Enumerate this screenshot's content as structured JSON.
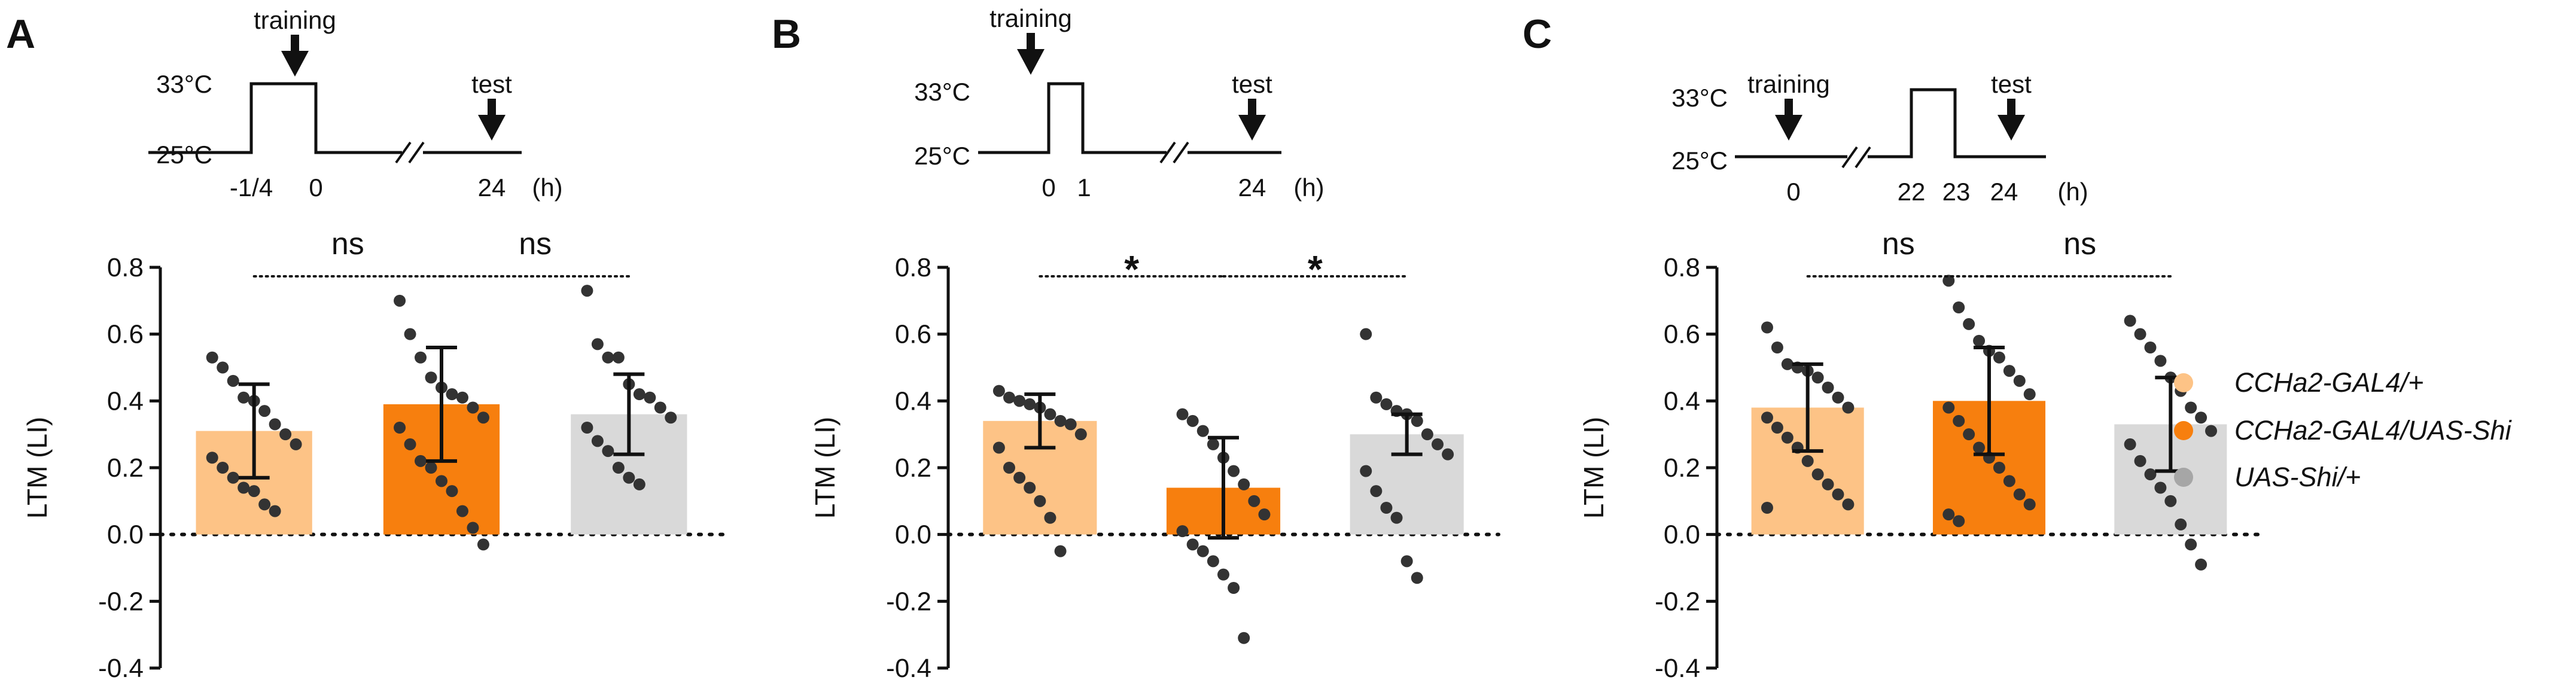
{
  "figure": {
    "legend": [
      {
        "label": "CCHa2-GAL4/+",
        "color": "#FDC386"
      },
      {
        "label": "CCHa2-GAL4/UAS-Shi",
        "color": "#F77F0E"
      },
      {
        "label": "UAS-Shi/+",
        "color": "#A6A6A6"
      }
    ],
    "colors": {
      "ink": "#111111",
      "dots": "#333333",
      "light_gray_bar": "#D9D9D9"
    }
  },
  "chart_data": [
    {
      "panel": "A",
      "type": "bar",
      "title": "",
      "ylabel": "LTM (LI)",
      "ylim": [
        -0.4,
        0.8
      ],
      "yticks": [
        "0.8",
        "0.6",
        "0.4",
        "0.2",
        "0.0",
        "-0.2",
        "-0.4"
      ],
      "categories": [
        "CCHa2-GAL4/+",
        "CCHa2-GAL4/UAS-Shi",
        "UAS-Shi/+"
      ],
      "values": [
        0.31,
        0.39,
        0.36
      ],
      "sd": [
        0.14,
        0.17,
        0.12
      ],
      "points": [
        [
          0.53,
          0.5,
          0.46,
          0.41,
          0.4,
          0.37,
          0.33,
          0.3,
          0.27,
          0.23,
          0.2,
          0.17,
          0.14,
          0.13,
          0.09,
          0.07
        ],
        [
          0.7,
          0.6,
          0.53,
          0.47,
          0.44,
          0.42,
          0.41,
          0.38,
          0.35,
          0.32,
          0.27,
          0.22,
          0.2,
          0.16,
          0.13,
          0.07,
          0.02,
          -0.03
        ],
        [
          0.73,
          0.57,
          0.53,
          0.53,
          0.45,
          0.42,
          0.41,
          0.38,
          0.35,
          0.32,
          0.28,
          0.25,
          0.2,
          0.17,
          0.15
        ]
      ],
      "significance": [
        "ns",
        "ns"
      ],
      "protocol": {
        "training_label": "training",
        "test_label": "test",
        "temp_high": "33°C",
        "temp_low": "25°C",
        "ticks": [
          "-1/4",
          "0",
          "24"
        ],
        "unit": "(h)"
      }
    },
    {
      "panel": "B",
      "type": "bar",
      "title": "",
      "ylabel": "LTM (LI)",
      "ylim": [
        -0.4,
        0.8
      ],
      "yticks": [
        "0.8",
        "0.6",
        "0.4",
        "0.2",
        "0.0",
        "-0.2",
        "-0.4"
      ],
      "categories": [
        "CCHa2-GAL4/+",
        "CCHa2-GAL4/UAS-Shi",
        "UAS-Shi/+"
      ],
      "values": [
        0.34,
        0.14,
        0.3
      ],
      "sd": [
        0.08,
        0.15,
        0.06
      ],
      "points": [
        [
          0.43,
          0.41,
          0.4,
          0.39,
          0.38,
          0.36,
          0.34,
          0.33,
          0.3,
          0.26,
          0.2,
          0.17,
          0.14,
          0.1,
          0.05,
          -0.05
        ],
        [
          0.36,
          0.34,
          0.31,
          0.27,
          0.23,
          0.19,
          0.15,
          0.1,
          0.06,
          0.01,
          -0.03,
          -0.05,
          -0.08,
          -0.12,
          -0.16,
          -0.31
        ],
        [
          0.6,
          0.41,
          0.39,
          0.37,
          0.36,
          0.34,
          0.3,
          0.27,
          0.24,
          0.19,
          0.13,
          0.08,
          0.05,
          -0.08,
          -0.13
        ]
      ],
      "significance": [
        "*",
        "*"
      ],
      "protocol": {
        "training_label": "training",
        "test_label": "test",
        "temp_high": "33°C",
        "temp_low": "25°C",
        "ticks": [
          "0",
          "1",
          "24"
        ],
        "unit": "(h)"
      }
    },
    {
      "panel": "C",
      "type": "bar",
      "title": "",
      "ylabel": "LTM (LI)",
      "ylim": [
        -0.4,
        0.8
      ],
      "yticks": [
        "0.8",
        "0.6",
        "0.4",
        "0.2",
        "0.0",
        "-0.2",
        "-0.4"
      ],
      "categories": [
        "CCHa2-GAL4/+",
        "CCHa2-GAL4/UAS-Shi",
        "UAS-Shi/+"
      ],
      "values": [
        0.38,
        0.4,
        0.33
      ],
      "sd": [
        0.13,
        0.16,
        0.14
      ],
      "points": [
        [
          0.62,
          0.56,
          0.51,
          0.5,
          0.49,
          0.47,
          0.44,
          0.41,
          0.38,
          0.35,
          0.32,
          0.29,
          0.26,
          0.22,
          0.18,
          0.15,
          0.12,
          0.09,
          0.08
        ],
        [
          0.76,
          0.68,
          0.63,
          0.58,
          0.55,
          0.53,
          0.49,
          0.46,
          0.42,
          0.38,
          0.34,
          0.3,
          0.26,
          0.23,
          0.2,
          0.16,
          0.12,
          0.09,
          0.06,
          0.04
        ],
        [
          0.64,
          0.6,
          0.56,
          0.52,
          0.47,
          0.43,
          0.38,
          0.35,
          0.31,
          0.27,
          0.22,
          0.18,
          0.14,
          0.1,
          0.03,
          -0.03,
          -0.09
        ]
      ],
      "significance": [
        "ns",
        "ns"
      ],
      "protocol": {
        "training_label": "training",
        "test_label": "test",
        "temp_high": "33°C",
        "temp_low": "25°C",
        "ticks": [
          "0",
          "22",
          "23",
          "24"
        ],
        "unit": "(h)"
      }
    }
  ]
}
